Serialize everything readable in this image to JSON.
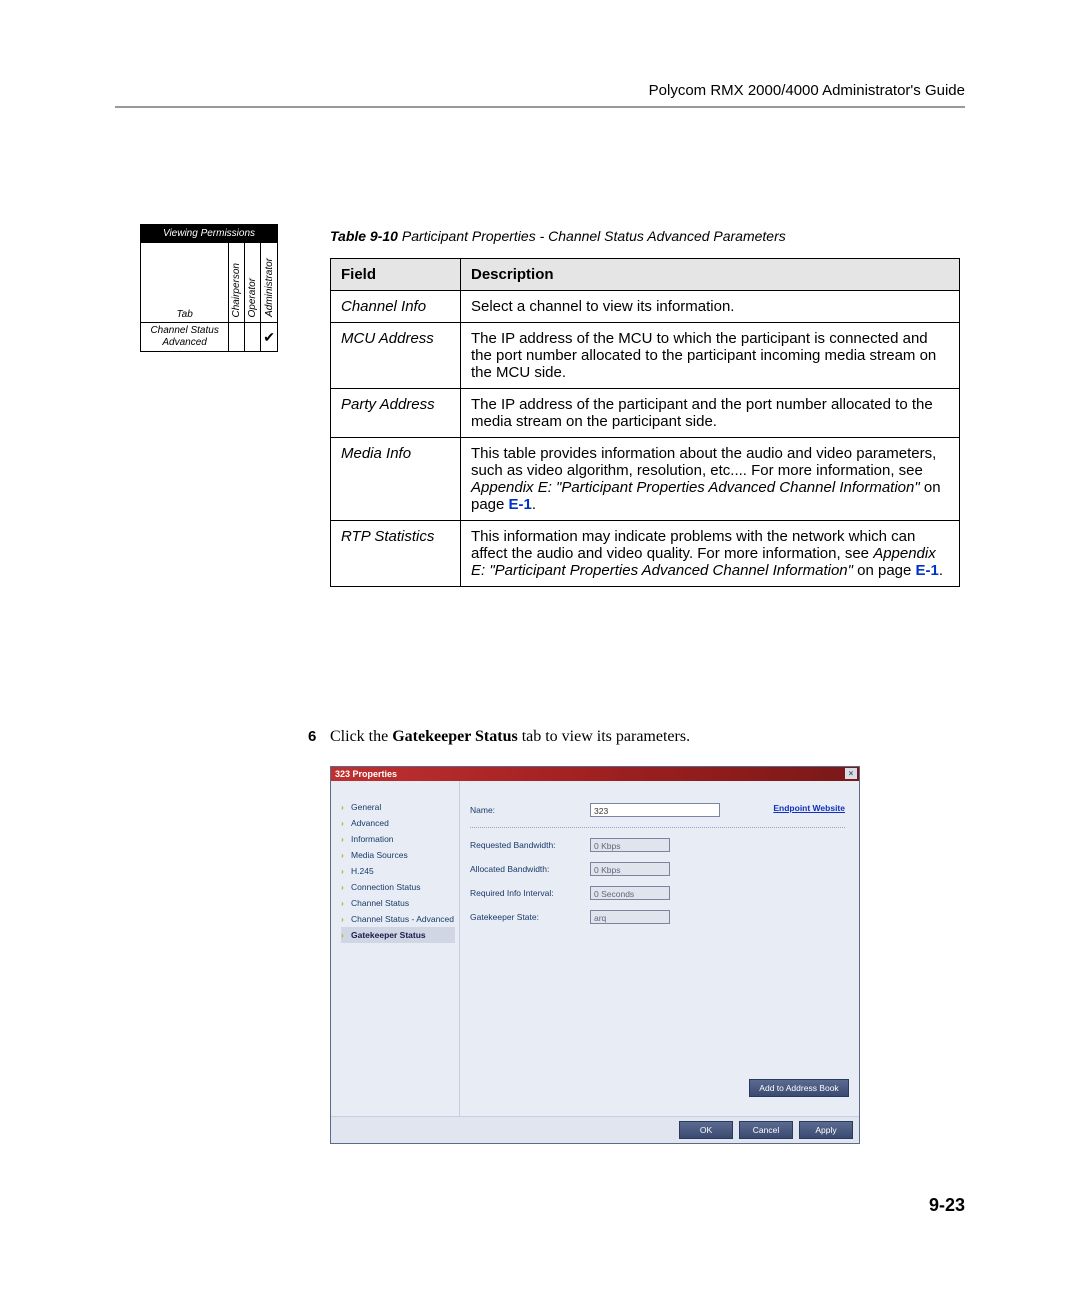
{
  "header": {
    "title": "Polycom RMX 2000/4000 Administrator's Guide"
  },
  "perm_table": {
    "title": "Viewing Permissions",
    "tab_hdr": "Tab",
    "cols": [
      "Chairperson",
      "Operator",
      "Administrator"
    ],
    "row_label": "Channel Status Advanced",
    "checks": [
      "",
      "",
      "✔"
    ]
  },
  "caption": {
    "label": "Table 9-10",
    "text": "Participant Properties - Channel Status Advanced Parameters"
  },
  "main_table": {
    "hdr_field": "Field",
    "hdr_desc": "Description",
    "rows": [
      {
        "field": "Channel Info",
        "desc": "Select a channel to view its information."
      },
      {
        "field": "MCU Address",
        "desc": "The IP address of the MCU to which the participant is connected and the port number allocated to the participant incoming media stream on the MCU side."
      },
      {
        "field": "Party Address",
        "desc": "The IP address of the participant and the port number allocated to the media stream on the participant side."
      },
      {
        "field": "Media Info",
        "desc_pre": "This table provides information about the audio and video parameters, such as video algorithm, resolution, etc.... For more information, see ",
        "desc_ital": "Appendix E: \"Participant Properties Advanced Channel Information\"",
        "desc_post": " on page ",
        "desc_link": "E-1",
        "desc_end": "."
      },
      {
        "field": "RTP Statistics",
        "desc_pre": "This information may indicate problems with the network which can affect the audio and video quality. For more information, see ",
        "desc_ital": "Appendix E: \"Participant Properties Advanced Channel Information\"",
        "desc_post": " on page ",
        "desc_link": "E-1",
        "desc_end": "."
      }
    ]
  },
  "step": {
    "num": "6",
    "pre": "Click the ",
    "bold": "Gatekeeper Status",
    "post": " tab to view its parameters."
  },
  "dialog": {
    "title": "323 Properties",
    "nav": [
      "General",
      "Advanced",
      "Information",
      "Media Sources",
      "H.245",
      "Connection Status",
      "Channel Status",
      "Channel Status - Advanced",
      "Gatekeeper Status"
    ],
    "nav_selected": 8,
    "name_lbl": "Name:",
    "name_val": "323",
    "ep_link": "Endpoint Website",
    "req_bw_lbl": "Requested Bandwidth:",
    "req_bw_val": "0  Kbps",
    "alloc_bw_lbl": "Allocated Bandwidth:",
    "alloc_bw_val": "0  Kbps",
    "req_int_lbl": "Required Info Interval:",
    "req_int_val": "0  Seconds",
    "gk_state_lbl": "Gatekeeper State:",
    "gk_state_val": "arq",
    "addr_btn": "Add to Address Book",
    "ok_btn": "OK",
    "cancel_btn": "Cancel",
    "apply_btn": "Apply"
  },
  "page_num": "9-23"
}
